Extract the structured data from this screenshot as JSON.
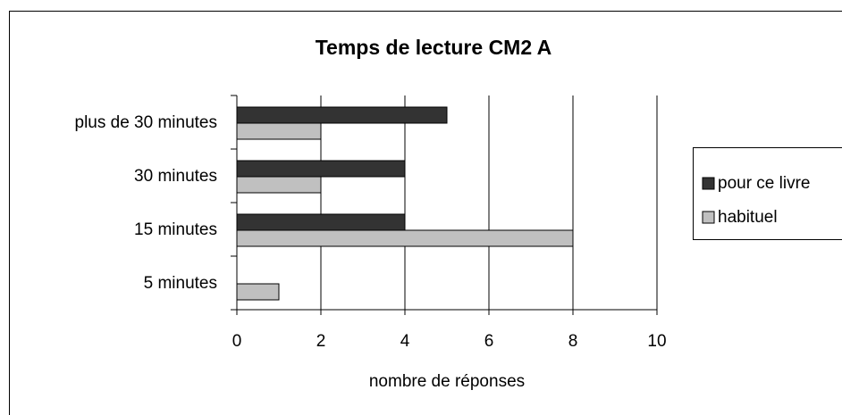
{
  "chart_data": {
    "type": "barh",
    "title": "Temps de lecture CM2 A",
    "categories": [
      "5 minutes",
      "15 minutes",
      "30 minutes",
      "plus de 30 minutes"
    ],
    "series": [
      {
        "name": "pour ce livre",
        "color": "#333333",
        "values": [
          0,
          4,
          4,
          5
        ]
      },
      {
        "name": "habituel",
        "color": "#c0c0c0",
        "values": [
          1,
          8,
          2,
          2
        ]
      }
    ],
    "xlabel": "nombre de réponses",
    "xlim": [
      0,
      10
    ],
    "xticks": [
      0,
      2,
      4,
      6,
      8,
      10
    ],
    "grid": true,
    "legend": "right"
  }
}
